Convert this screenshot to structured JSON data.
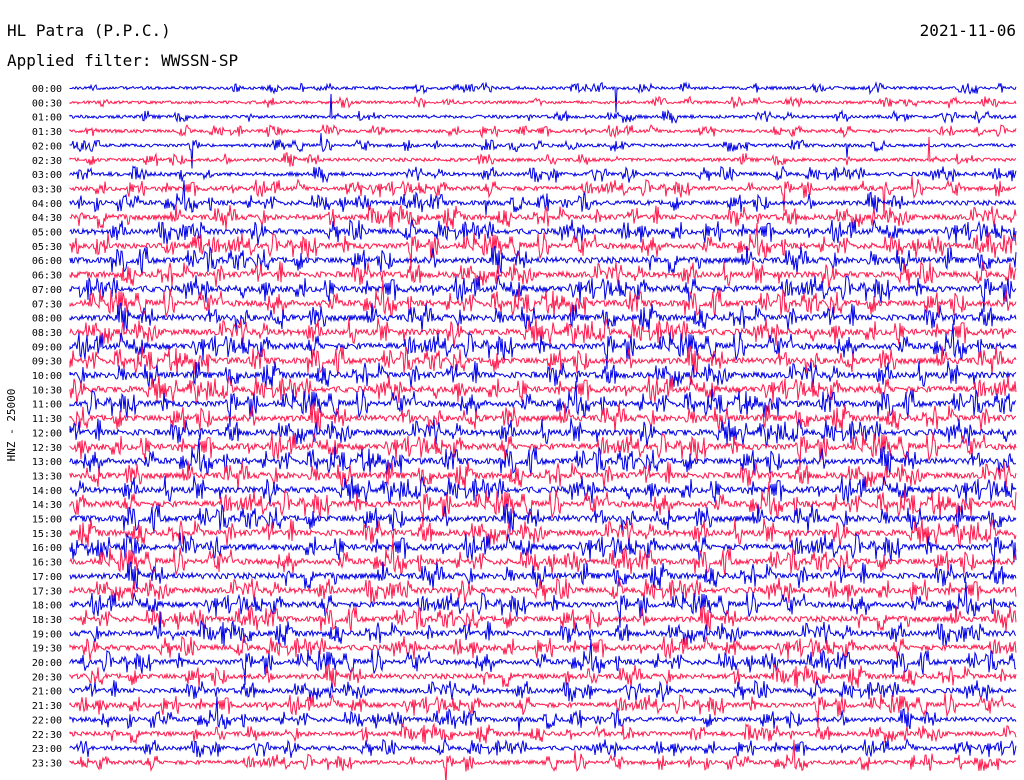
{
  "header": {
    "station": "HL Patra (P.P.C.)",
    "date": "2021-11-06",
    "filter": "Applied filter: WWSSN-SP"
  },
  "axis": {
    "channel_label": "HNZ - 25000"
  },
  "colors": {
    "even_rows": "#0000e6",
    "odd_rows": "#ff1a4d",
    "background": "#ffffff",
    "text": "#000000"
  },
  "chart_data": {
    "type": "line",
    "title": "HL Patra (P.P.C.)",
    "subtitle": "Applied filter: WWSSN-SP",
    "date": "2021-11-06",
    "ylabel": "HNZ - 25000",
    "rows": [
      {
        "time": "00:00",
        "activity": 0.25
      },
      {
        "time": "00:30",
        "activity": 0.25
      },
      {
        "time": "01:00",
        "activity": 0.3
      },
      {
        "time": "01:30",
        "activity": 0.3
      },
      {
        "time": "02:00",
        "activity": 0.3
      },
      {
        "time": "02:30",
        "activity": 0.35
      },
      {
        "time": "03:00",
        "activity": 0.45
      },
      {
        "time": "03:30",
        "activity": 0.55
      },
      {
        "time": "04:00",
        "activity": 0.65
      },
      {
        "time": "04:30",
        "activity": 0.8
      },
      {
        "time": "05:00",
        "activity": 0.85
      },
      {
        "time": "05:30",
        "activity": 0.9
      },
      {
        "time": "06:00",
        "activity": 0.95
      },
      {
        "time": "06:30",
        "activity": 0.95
      },
      {
        "time": "07:00",
        "activity": 1.0
      },
      {
        "time": "07:30",
        "activity": 1.0
      },
      {
        "time": "08:00",
        "activity": 1.0
      },
      {
        "time": "08:30",
        "activity": 1.0
      },
      {
        "time": "09:00",
        "activity": 1.0
      },
      {
        "time": "09:30",
        "activity": 1.0
      },
      {
        "time": "10:00",
        "activity": 1.0
      },
      {
        "time": "10:30",
        "activity": 1.0
      },
      {
        "time": "11:00",
        "activity": 1.0
      },
      {
        "time": "11:30",
        "activity": 1.0
      },
      {
        "time": "12:00",
        "activity": 1.0
      },
      {
        "time": "12:30",
        "activity": 1.0
      },
      {
        "time": "13:00",
        "activity": 1.0
      },
      {
        "time": "13:30",
        "activity": 1.0
      },
      {
        "time": "14:00",
        "activity": 1.0
      },
      {
        "time": "14:30",
        "activity": 1.0
      },
      {
        "time": "15:00",
        "activity": 1.0
      },
      {
        "time": "15:30",
        "activity": 1.0
      },
      {
        "time": "16:00",
        "activity": 1.0
      },
      {
        "time": "16:30",
        "activity": 0.95
      },
      {
        "time": "17:00",
        "activity": 0.95
      },
      {
        "time": "17:30",
        "activity": 0.9
      },
      {
        "time": "18:00",
        "activity": 0.85
      },
      {
        "time": "18:30",
        "activity": 0.85
      },
      {
        "time": "19:00",
        "activity": 0.85
      },
      {
        "time": "19:30",
        "activity": 0.8
      },
      {
        "time": "20:00",
        "activity": 0.8
      },
      {
        "time": "20:30",
        "activity": 0.75
      },
      {
        "time": "21:00",
        "activity": 0.7
      },
      {
        "time": "21:30",
        "activity": 0.7
      },
      {
        "time": "22:00",
        "activity": 0.65
      },
      {
        "time": "22:30",
        "activity": 0.6
      },
      {
        "time": "23:00",
        "activity": 0.55
      },
      {
        "time": "23:30",
        "activity": 0.5
      }
    ]
  }
}
